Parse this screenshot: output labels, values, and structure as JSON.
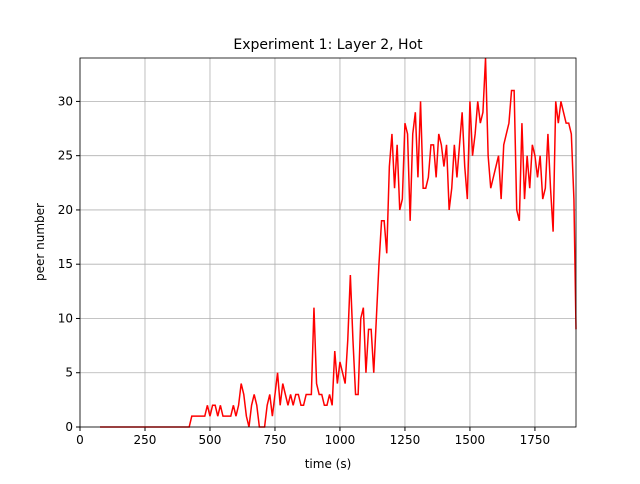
{
  "chart_data": {
    "type": "line",
    "title": "Experiment 1: Layer 2, Hot",
    "x_label": "time (s)",
    "y_label": "peer number",
    "x": [
      77,
      420,
      430,
      440,
      450,
      460,
      470,
      480,
      490,
      500,
      510,
      520,
      530,
      540,
      550,
      560,
      570,
      580,
      590,
      600,
      610,
      620,
      630,
      640,
      650,
      660,
      670,
      680,
      690,
      700,
      710,
      720,
      730,
      740,
      750,
      760,
      770,
      780,
      790,
      800,
      810,
      820,
      830,
      840,
      850,
      860,
      870,
      880,
      890,
      900,
      910,
      920,
      930,
      940,
      950,
      960,
      970,
      980,
      990,
      1000,
      1010,
      1020,
      1030,
      1040,
      1050,
      1060,
      1070,
      1080,
      1090,
      1100,
      1110,
      1120,
      1130,
      1140,
      1150,
      1160,
      1170,
      1180,
      1190,
      1200,
      1210,
      1220,
      1230,
      1240,
      1250,
      1260,
      1270,
      1280,
      1290,
      1300,
      1310,
      1320,
      1330,
      1340,
      1350,
      1360,
      1370,
      1380,
      1390,
      1400,
      1410,
      1420,
      1430,
      1440,
      1450,
      1460,
      1470,
      1480,
      1490,
      1500,
      1510,
      1520,
      1530,
      1540,
      1550,
      1560,
      1570,
      1580,
      1590,
      1600,
      1610,
      1620,
      1630,
      1640,
      1650,
      1660,
      1670,
      1680,
      1690,
      1700,
      1710,
      1720,
      1730,
      1740,
      1750,
      1760,
      1770,
      1780,
      1790,
      1800,
      1810,
      1820,
      1830,
      1840,
      1850,
      1860,
      1870,
      1880,
      1890,
      1900,
      1908
    ],
    "series": [
      {
        "color": "#ff0000",
        "values": [
          0,
          0,
          1,
          1,
          1,
          1,
          1,
          1,
          2,
          1,
          2,
          2,
          1,
          2,
          1,
          1,
          1,
          1,
          2,
          1,
          2,
          4,
          3,
          1,
          0,
          2,
          3,
          2,
          0,
          0,
          0,
          2,
          3,
          1,
          3,
          5,
          2,
          4,
          3,
          2,
          3,
          2,
          3,
          3,
          2,
          2,
          3,
          3,
          3,
          11,
          4,
          3,
          3,
          2,
          2,
          3,
          2,
          7,
          4,
          6,
          5,
          4,
          8,
          14,
          8,
          3,
          3,
          10,
          11,
          5,
          9,
          9,
          5,
          10,
          15,
          19,
          19,
          16,
          24,
          27,
          22,
          26,
          20,
          21,
          28,
          27,
          19,
          27,
          29,
          23,
          30,
          22,
          22,
          23,
          26,
          26,
          23,
          27,
          26,
          24,
          26,
          20,
          22,
          26,
          23,
          26,
          29,
          24,
          21,
          30,
          25,
          27,
          30,
          28,
          29,
          34,
          25,
          22,
          23,
          24,
          25,
          21,
          26,
          27,
          28,
          31,
          31,
          20,
          19,
          28,
          21,
          25,
          22,
          26,
          25,
          23,
          25,
          21,
          22,
          27,
          22,
          18,
          30,
          28,
          30,
          29,
          28,
          28,
          27,
          21,
          9
        ]
      }
    ],
    "xlim": [
      0,
      1908
    ],
    "ylim": [
      0,
      34
    ],
    "xticks": [
      0,
      250,
      500,
      750,
      1000,
      1250,
      1500,
      1750
    ],
    "yticks": [
      0,
      5,
      10,
      15,
      20,
      25,
      30
    ],
    "grid": true
  }
}
